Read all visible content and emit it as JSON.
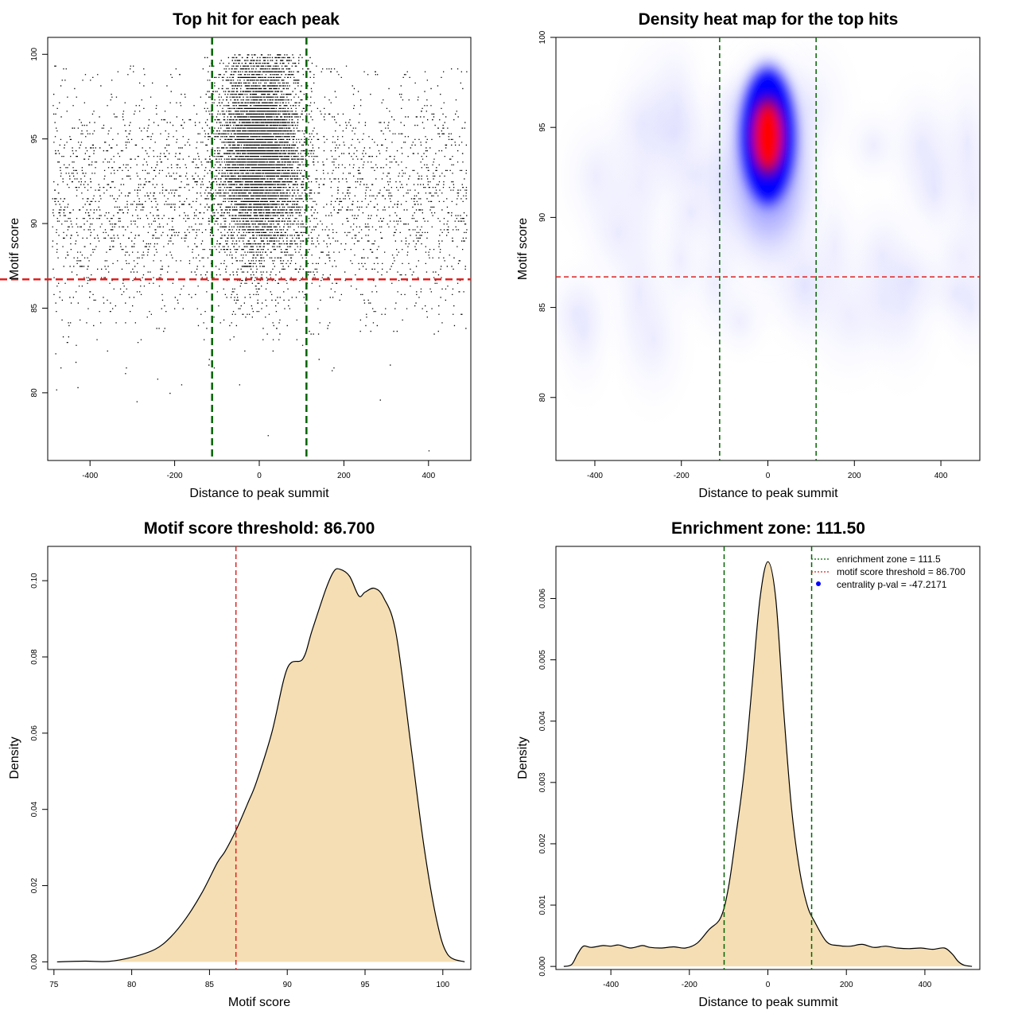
{
  "colors": {
    "enrichment_line": "#006400",
    "threshold_line": "#dd2222",
    "density_fill": "#f5deb3",
    "heat_low": "#ffffff",
    "heat_mid": "#0000ff",
    "heat_high": "#ff0000",
    "pval_dot": "#0000ff"
  },
  "chart_data": [
    {
      "type": "scatter",
      "title": "Top hit for each peak",
      "xlabel": "Distance to peak summit",
      "ylabel": "Motif score",
      "xlim": [
        -500,
        500
      ],
      "ylim": [
        76,
        101
      ],
      "xticks": [
        "-400",
        "-200",
        "0",
        "200",
        "400"
      ],
      "yticks": [
        "80",
        "85",
        "90",
        "95",
        "100"
      ],
      "point_distribution": {
        "background_points": 3300,
        "background_x_range": [
          -490,
          490
        ],
        "central_points": 6500,
        "central_x_sd": 48,
        "central_y_mean": 94.2,
        "central_y_sd": 3.1,
        "y_max": 100
      },
      "vlines": [
        -111.5,
        111.5
      ],
      "hline": 86.7,
      "grid": false
    },
    {
      "type": "heatmap",
      "title": "Density heat map for the top hits",
      "xlabel": "Distance to peak summit",
      "ylabel": "Motif score",
      "xlim": [
        -490,
        490
      ],
      "ylim": [
        76.5,
        100
      ],
      "xticks": [
        "-400",
        "-200",
        "0",
        "200",
        "400"
      ],
      "yticks": [
        "80",
        "85",
        "90",
        "95",
        "100"
      ],
      "density_peak": {
        "x": 0,
        "y": 94.5
      },
      "vlines": [
        -111.5,
        111.5
      ],
      "hline": 86.7,
      "grid": false
    },
    {
      "type": "area",
      "title": "Motif score threshold: 86.700",
      "xlabel": "Motif score",
      "ylabel": "Density",
      "xlim": [
        74.6,
        101.8
      ],
      "ylim": [
        -0.002,
        0.109
      ],
      "xticks": [
        "75",
        "80",
        "85",
        "90",
        "95",
        "100"
      ],
      "yticks": [
        "0.00",
        "0.02",
        "0.04",
        "0.06",
        "0.08",
        "0.10"
      ],
      "x": [
        75.2,
        77,
        78.5,
        80,
        81.5,
        82.5,
        83.5,
        84.5,
        85.5,
        86,
        86.7,
        87.5,
        88,
        89,
        90,
        91,
        91.6,
        92.5,
        93,
        93.4,
        94,
        94.6,
        95,
        95.6,
        96.2,
        97,
        98,
        98.8,
        99.6,
        100.3,
        101.4
      ],
      "y": [
        0,
        0.0002,
        0.0001,
        0.0012,
        0.0033,
        0.0065,
        0.0115,
        0.018,
        0.026,
        0.029,
        0.0345,
        0.042,
        0.047,
        0.06,
        0.077,
        0.0795,
        0.087,
        0.098,
        0.1025,
        0.103,
        0.1012,
        0.096,
        0.097,
        0.098,
        0.0955,
        0.086,
        0.055,
        0.03,
        0.011,
        0.002,
        0.0
      ],
      "vline": 86.7,
      "grid": false
    },
    {
      "type": "area",
      "title": "Enrichment zone: 111.50",
      "xlabel": "Distance to peak summit",
      "ylabel": "Density",
      "xlim": [
        -540,
        540
      ],
      "ylim": [
        -5e-05,
        0.00685
      ],
      "xticks": [
        "-400",
        "-200",
        "0",
        "200",
        "400"
      ],
      "yticks": [
        "0.000",
        "0.001",
        "0.002",
        "0.003",
        "0.004",
        "0.005",
        "0.006"
      ],
      "x": [
        -520,
        -500,
        -485,
        -470,
        -450,
        -420,
        -400,
        -380,
        -350,
        -320,
        -300,
        -270,
        -240,
        -210,
        -180,
        -150,
        -120,
        -100,
        -80,
        -60,
        -40,
        -20,
        0,
        20,
        40,
        60,
        80,
        100,
        120,
        150,
        180,
        210,
        240,
        270,
        300,
        330,
        360,
        390,
        420,
        450,
        470,
        485,
        500,
        520
      ],
      "y": [
        0,
        3e-05,
        0.0002,
        0.00033,
        0.00031,
        0.00034,
        0.00033,
        0.00035,
        0.0003,
        0.00034,
        0.00031,
        0.0003,
        0.00032,
        0.0003,
        0.00038,
        0.0006,
        0.0008,
        0.0013,
        0.0022,
        0.0032,
        0.0046,
        0.006,
        0.0066,
        0.006,
        0.0042,
        0.0026,
        0.0016,
        0.001,
        0.00072,
        0.0004,
        0.00034,
        0.00033,
        0.00036,
        0.00031,
        0.00033,
        0.0003,
        0.00029,
        0.0003,
        0.00028,
        0.0003,
        0.0002,
        8e-05,
        2e-05,
        0
      ],
      "vlines": [
        -111.5,
        111.5
      ],
      "legend": {
        "placement": "top-right",
        "items": [
          {
            "label": "enrichment zone = 111.5",
            "style": "dotted",
            "color": "#006400"
          },
          {
            "label": "motif score threshold = 86.700",
            "style": "dotted",
            "color": "#dd2222"
          },
          {
            "label": "centrality p-val = -47.2171",
            "style": "dot",
            "color": "#0000ff"
          }
        ]
      },
      "grid": false
    }
  ]
}
